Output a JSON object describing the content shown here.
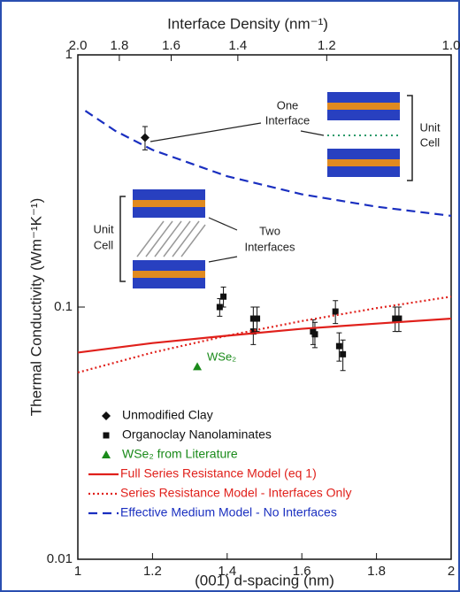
{
  "chart_data": {
    "type": "scatter",
    "xlabel": "(001) d-spacing (nm)",
    "ylabel": "Thermal Conductivity (Wm⁻¹K⁻¹)",
    "x2label": "Interface Density (nm⁻¹)",
    "xlim": [
      1,
      2
    ],
    "ylim": [
      0.01,
      1
    ],
    "y_log": true,
    "xticks": [
      1,
      1.2,
      1.4,
      1.6,
      1.8,
      2
    ],
    "yticks": [
      0.01,
      0.1,
      1
    ],
    "x2lim": [
      2.0,
      1.0
    ],
    "x2ticks": [
      {
        "value": 2.0,
        "label": "2.0"
      },
      {
        "value": 1.8,
        "label": "1.8"
      },
      {
        "value": 1.6,
        "label": "1.6"
      },
      {
        "value": 1.4,
        "label": "1.4"
      },
      {
        "value": 1.2,
        "label": "1.2"
      },
      {
        "value": 1.0,
        "label": "1.0"
      }
    ],
    "series": [
      {
        "name": "Unmodified Clay",
        "kind": "points",
        "marker": "diamond",
        "color": "#111111",
        "text_color": "#111111",
        "x": [
          1.18
        ],
        "values": [
          0.47
        ],
        "errors": [
          0.05
        ]
      },
      {
        "name": "Organoclay Nanolaminates",
        "kind": "points",
        "marker": "square",
        "color": "#111111",
        "text_color": "#111111",
        "x": [
          1.38,
          1.39,
          1.47,
          1.47,
          1.48,
          1.63,
          1.635,
          1.69,
          1.7,
          1.71,
          1.85,
          1.86
        ],
        "values": [
          0.1,
          0.11,
          0.08,
          0.09,
          0.09,
          0.08,
          0.078,
          0.096,
          0.07,
          0.065,
          0.09,
          0.09
        ],
        "errors": [
          0.008,
          0.01,
          0.009,
          0.01,
          0.01,
          0.009,
          0.009,
          0.01,
          0.009,
          0.009,
          0.01,
          0.01
        ]
      },
      {
        "name": "WSe₂ from Literature",
        "kind": "points",
        "marker": "triangle",
        "color": "#1a8a1a",
        "text_color": "#1a8a1a",
        "x": [
          1.32
        ],
        "values": [
          0.058
        ]
      },
      {
        "name": "Full Series Resistance Model (eq 1)",
        "kind": "line",
        "dash": "solid",
        "color": "#e0201b",
        "text_color": "#e0201b",
        "x": [
          1,
          1.2,
          1.4,
          1.6,
          1.8,
          2
        ],
        "values": [
          0.066,
          0.072,
          0.077,
          0.082,
          0.086,
          0.09
        ]
      },
      {
        "name": "Series Resistance Model - Interfaces Only",
        "kind": "line",
        "dash": "dotted",
        "color": "#e0201b",
        "text_color": "#e0201b",
        "x": [
          1,
          1.2,
          1.4,
          1.6,
          1.8,
          2
        ],
        "values": [
          0.055,
          0.066,
          0.077,
          0.088,
          0.099,
          0.11
        ]
      },
      {
        "name": "Effective Medium Model - No Interfaces",
        "kind": "line",
        "dash": "dashed",
        "color": "#1a2fc0",
        "text_color": "#1a2fc0",
        "x": [
          1.02,
          1.1,
          1.2,
          1.4,
          1.6,
          1.8,
          2
        ],
        "values": [
          0.6,
          0.5,
          0.42,
          0.33,
          0.28,
          0.25,
          0.23
        ]
      }
    ],
    "annotations": {
      "one_interface": [
        "One",
        "Interface"
      ],
      "unit_cell_right": [
        "Unit",
        "Cell"
      ],
      "two_interfaces": [
        "Two",
        "Interfaces"
      ],
      "unit_cell_left": [
        "Unit",
        "Cell"
      ],
      "wse2": "WSe₂"
    }
  }
}
